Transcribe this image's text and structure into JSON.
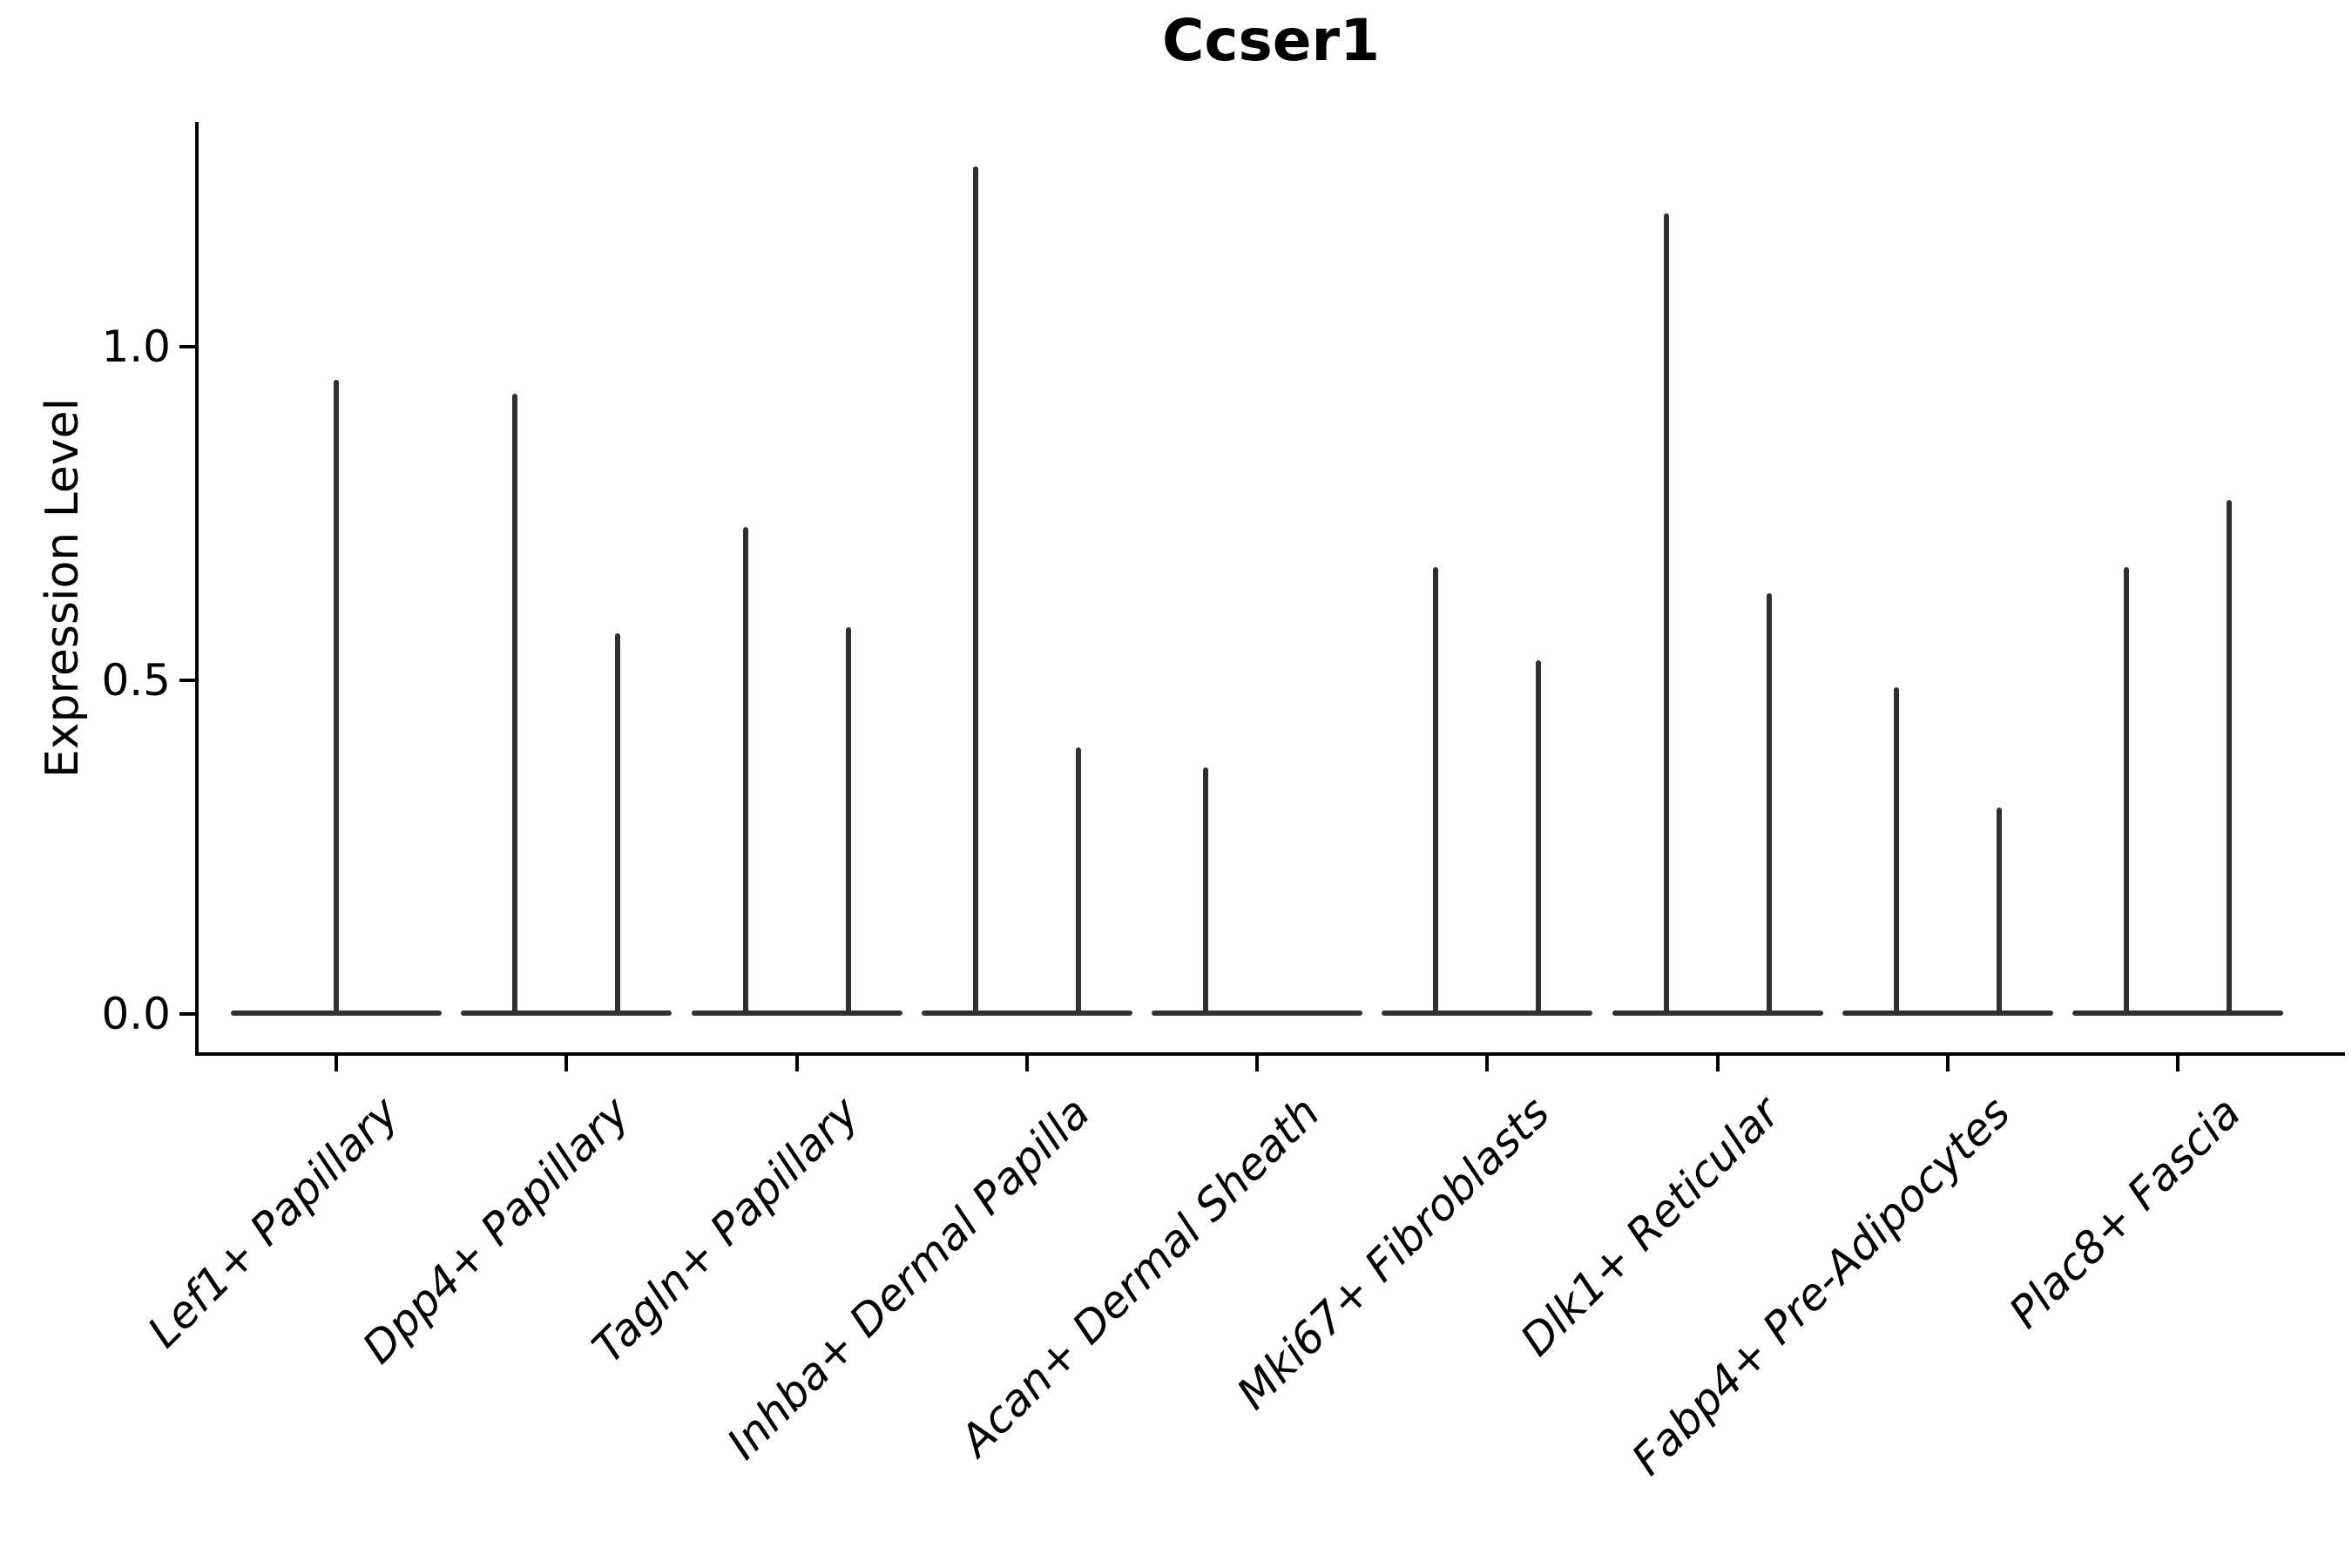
{
  "title": "Ccser1",
  "colors": {
    "background": "#ffffff",
    "axis": "#000000",
    "violin": "#303030",
    "text": "#000000"
  },
  "chart_data": {
    "type": "violin",
    "title": "Ccser1",
    "xlabel": "",
    "ylabel": "Expression Level",
    "ylim": [
      -0.06,
      1.34
    ],
    "grid": false,
    "legend": "none",
    "y_ticks": [
      {
        "value": 0.0,
        "label": "0.0"
      },
      {
        "value": 0.5,
        "label": "0.5"
      },
      {
        "value": 1.0,
        "label": "1.0"
      }
    ],
    "categories": [
      {
        "label": "Lef1+ Papillary",
        "violin_maxima": [
          0.95
        ]
      },
      {
        "label": "Dpp4+ Papillary",
        "violin_maxima": [
          0.93,
          0.57
        ]
      },
      {
        "label": "Tagln+ Papillary",
        "violin_maxima": [
          0.73,
          0.58
        ]
      },
      {
        "label": "Inhba+ Dermal Papilla",
        "violin_maxima": [
          1.27,
          0.4
        ]
      },
      {
        "label": "Acan+ Dermal Sheath",
        "violin_maxima": [
          0.37,
          0.0
        ]
      },
      {
        "label": "Mki67+ Fibroblasts",
        "violin_maxima": [
          0.67,
          0.53
        ]
      },
      {
        "label": "Dlk1+ Reticular",
        "violin_maxima": [
          1.2,
          0.63
        ]
      },
      {
        "label": "Fabp4+ Pre-Adipocytes",
        "violin_maxima": [
          0.49,
          0.31
        ]
      },
      {
        "label": "Plac8+ Fascia",
        "violin_maxima": [
          0.67,
          0.77
        ]
      }
    ]
  }
}
